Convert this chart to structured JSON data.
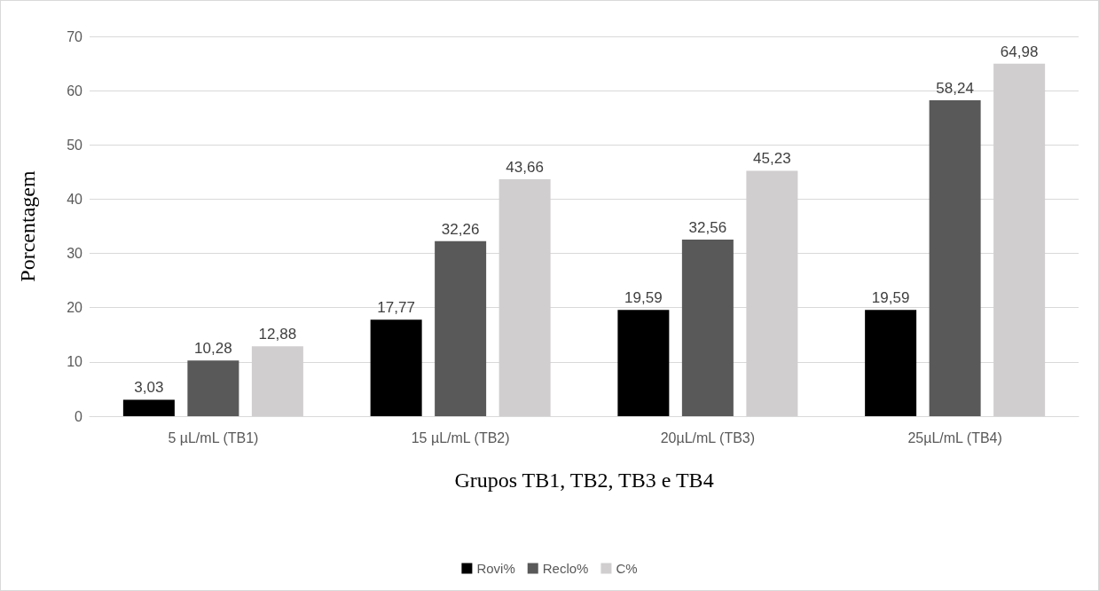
{
  "chart_data": {
    "type": "bar",
    "xlabel": "Grupos TB1, TB2, TB3 e TB4",
    "ylabel": "Porcentagem",
    "categories": [
      "5 µL/mL (TB1)",
      "15 µL/mL (TB2)",
      "20µL/mL (TB3)",
      "25µL/mL (TB4)"
    ],
    "series": [
      {
        "name": "Rovi%",
        "color": "#000000",
        "values": [
          3.03,
          17.77,
          19.59,
          19.59
        ],
        "value_labels": [
          "3,03",
          "17,77",
          "19,59",
          "19,59"
        ]
      },
      {
        "name": "Reclo%",
        "color": "#595959",
        "values": [
          10.28,
          32.26,
          32.56,
          58.24
        ],
        "value_labels": [
          "10,28",
          "32,26",
          "32,56",
          "58,24"
        ]
      },
      {
        "name": "C%",
        "color": "#d0cecf",
        "values": [
          12.88,
          43.66,
          45.23,
          64.98
        ],
        "value_labels": [
          "12,88",
          "43,66",
          "45,23",
          "64,98"
        ]
      }
    ],
    "ylim": [
      0,
      70
    ],
    "yticks": [
      0,
      10,
      20,
      30,
      40,
      50,
      60,
      70
    ],
    "grid": "y",
    "legend": "bottom"
  }
}
